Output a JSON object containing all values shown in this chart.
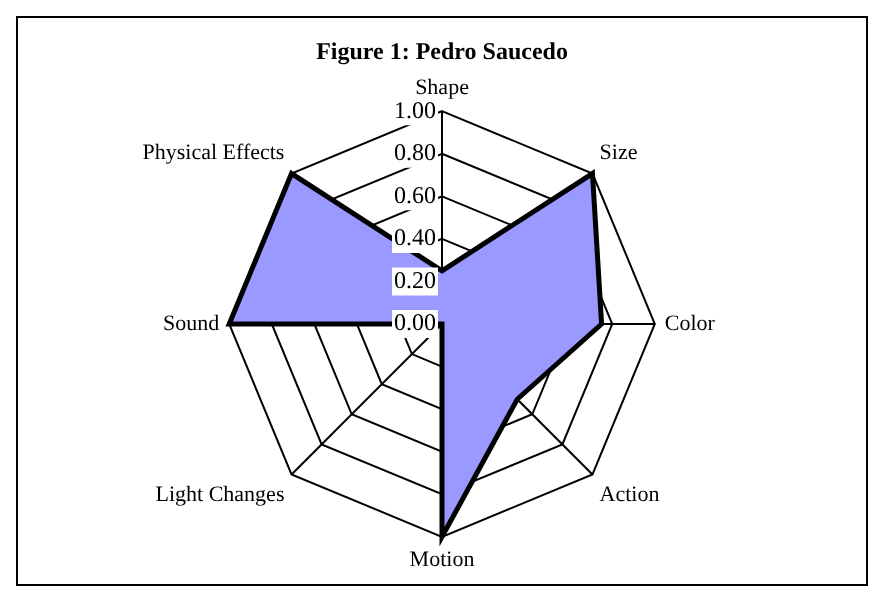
{
  "chart_data": {
    "type": "radar",
    "title": "Figure 1: Pedro Saucedo",
    "categories": [
      "Shape",
      "Size",
      "Color",
      "Action",
      "Motion",
      "Light Changes",
      "Sound",
      "Physical Effects"
    ],
    "series": [
      {
        "color": "#9999ff",
        "values": [
          0.25,
          1.0,
          0.75,
          0.5,
          1.0,
          0,
          1.0,
          1.0
        ]
      }
    ],
    "ylim": [
      0,
      1
    ],
    "yticks": [
      {
        "value": 0,
        "label": "0.00"
      },
      {
        "value": 0.2,
        "label": "0.20"
      },
      {
        "value": 0.4,
        "label": "0.40"
      },
      {
        "value": 0.6,
        "label": "0.60"
      },
      {
        "value": 0.8,
        "label": "0.80"
      },
      {
        "value": 1,
        "label": "1.00"
      }
    ],
    "grid": true,
    "legend": false
  }
}
